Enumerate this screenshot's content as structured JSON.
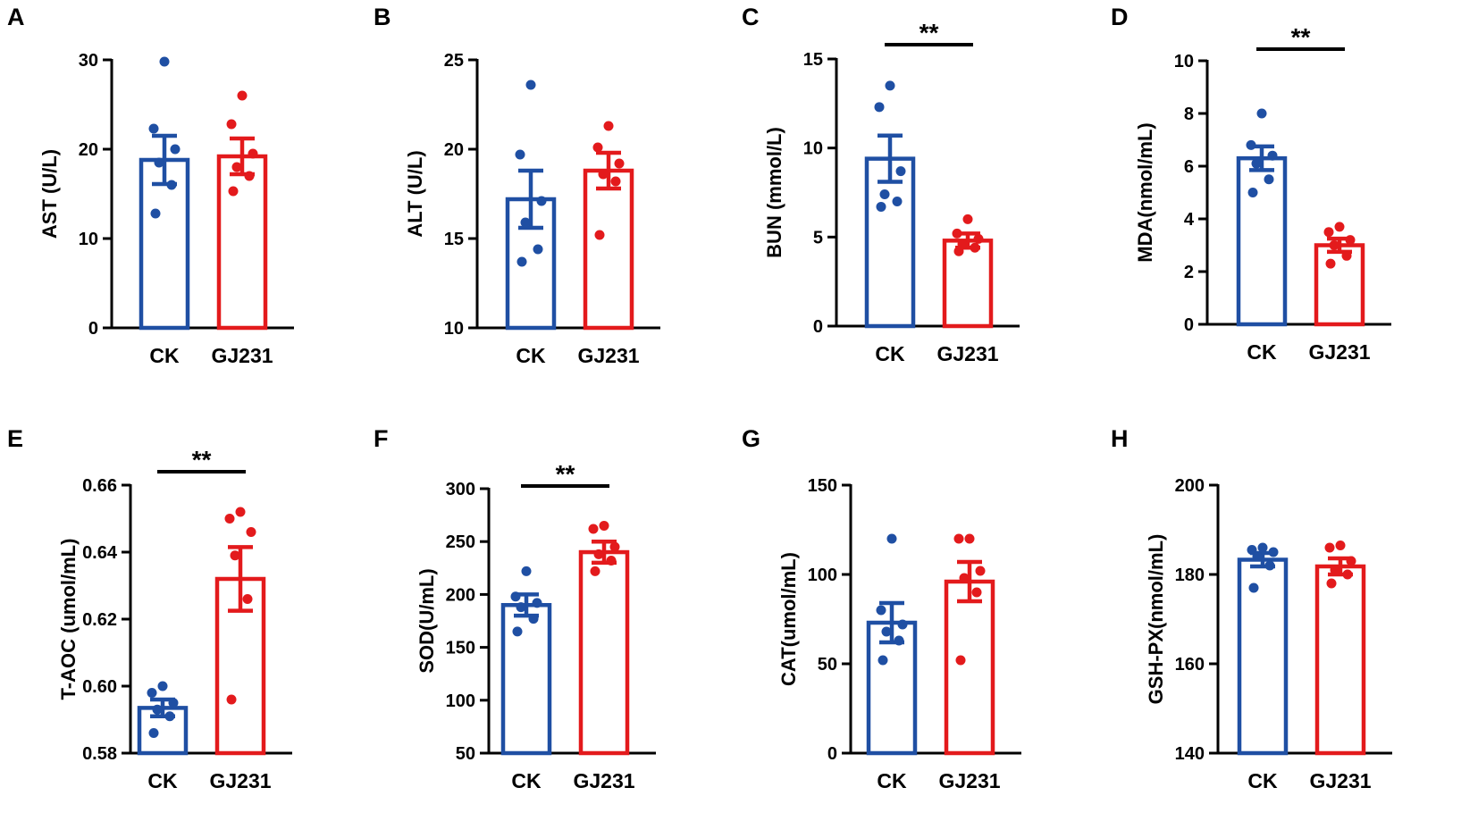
{
  "colors": {
    "ck": "#1f4fa3",
    "gj231": "#e31a1c",
    "axis": "#000000"
  },
  "chart_data": [
    {
      "panel": "A",
      "type": "bar",
      "categories": [
        "CK",
        "GJ231"
      ],
      "ylabel": "AST (U/L)",
      "ylim": [
        0,
        30
      ],
      "yticks": [
        0,
        10,
        20,
        30
      ],
      "tick_labels": [
        "0",
        "10",
        "20",
        "30"
      ],
      "significance": "",
      "series": [
        {
          "name": "CK",
          "mean": 18.8,
          "sem": 2.7,
          "points": [
            29.8,
            22.3,
            20.0,
            18.5,
            16.0,
            12.8
          ]
        },
        {
          "name": "GJ231",
          "mean": 19.2,
          "sem": 2.0,
          "points": [
            26.0,
            22.8,
            19.5,
            18.0,
            17.0,
            15.3
          ]
        }
      ]
    },
    {
      "panel": "B",
      "type": "bar",
      "categories": [
        "CK",
        "GJ231"
      ],
      "ylabel": "ALT (U/L)",
      "ylim": [
        10,
        25
      ],
      "yticks": [
        10,
        15,
        20,
        25
      ],
      "tick_labels": [
        "10",
        "15",
        "20",
        "25"
      ],
      "significance": "",
      "series": [
        {
          "name": "CK",
          "mean": 17.2,
          "sem": 1.6,
          "points": [
            23.6,
            19.7,
            17.1,
            15.9,
            14.4,
            13.7
          ]
        },
        {
          "name": "GJ231",
          "mean": 18.8,
          "sem": 1.0,
          "points": [
            21.3,
            20.1,
            19.2,
            18.6,
            18.2,
            15.2
          ]
        }
      ]
    },
    {
      "panel": "C",
      "type": "bar",
      "categories": [
        "CK",
        "GJ231"
      ],
      "ylabel": "BUN (mmol/L)",
      "ylim": [
        0,
        15
      ],
      "yticks": [
        0,
        5,
        10,
        15
      ],
      "tick_labels": [
        "0",
        "5",
        "10",
        "15"
      ],
      "significance": "**",
      "series": [
        {
          "name": "CK",
          "mean": 9.4,
          "sem": 1.3,
          "points": [
            13.5,
            12.3,
            8.7,
            7.4,
            7.0,
            6.7
          ]
        },
        {
          "name": "GJ231",
          "mean": 4.8,
          "sem": 0.4,
          "points": [
            6.0,
            5.2,
            4.9,
            4.6,
            4.4,
            4.2
          ]
        }
      ]
    },
    {
      "panel": "D",
      "type": "bar",
      "categories": [
        "CK",
        "GJ231"
      ],
      "ylabel": "MDA(nmol/mL)",
      "ylim": [
        0,
        10
      ],
      "yticks": [
        0,
        2,
        4,
        6,
        8,
        10
      ],
      "tick_labels": [
        "0",
        "2",
        "4",
        "6",
        "8",
        "10"
      ],
      "significance": "**",
      "series": [
        {
          "name": "CK",
          "mean": 6.3,
          "sem": 0.45,
          "points": [
            8.0,
            6.8,
            6.4,
            6.1,
            5.5,
            5.0
          ]
        },
        {
          "name": "GJ231",
          "mean": 3.0,
          "sem": 0.25,
          "points": [
            3.7,
            3.5,
            3.2,
            3.0,
            2.6,
            2.3
          ]
        }
      ]
    },
    {
      "panel": "E",
      "type": "bar",
      "categories": [
        "CK",
        "GJ231"
      ],
      "ylabel": "T-AOC (umol/mL)",
      "ylim": [
        0.58,
        0.66
      ],
      "yticks": [
        0.58,
        0.6,
        0.62,
        0.64,
        0.66
      ],
      "tick_labels": [
        "0.58",
        "0.60",
        "0.62",
        "0.64",
        "0.66"
      ],
      "significance": "**",
      "series": [
        {
          "name": "CK",
          "mean": 0.5935,
          "sem": 0.0025,
          "points": [
            0.6,
            0.598,
            0.595,
            0.593,
            0.591,
            0.586
          ]
        },
        {
          "name": "GJ231",
          "mean": 0.632,
          "sem": 0.0095,
          "points": [
            0.652,
            0.65,
            0.646,
            0.639,
            0.626,
            0.596
          ]
        }
      ]
    },
    {
      "panel": "F",
      "type": "bar",
      "categories": [
        "CK",
        "GJ231"
      ],
      "ylabel": "SOD(U/mL)",
      "ylim": [
        50,
        300
      ],
      "yticks": [
        50,
        100,
        150,
        200,
        250,
        300
      ],
      "tick_labels": [
        "50",
        "100",
        "150",
        "200",
        "250",
        "300"
      ],
      "significance": "**",
      "series": [
        {
          "name": "CK",
          "mean": 190,
          "sem": 10,
          "points": [
            222,
            198,
            192,
            188,
            177,
            165
          ]
        },
        {
          "name": "GJ231",
          "mean": 240,
          "sem": 10,
          "points": [
            265,
            262,
            245,
            238,
            232,
            222
          ]
        }
      ]
    },
    {
      "panel": "G",
      "type": "bar",
      "categories": [
        "CK",
        "GJ231"
      ],
      "ylabel": "CAT(umol/mL)",
      "ylim": [
        0,
        150
      ],
      "yticks": [
        0,
        50,
        100,
        150
      ],
      "tick_labels": [
        "0",
        "50",
        "100",
        "150"
      ],
      "significance": "",
      "series": [
        {
          "name": "CK",
          "mean": 73,
          "sem": 11,
          "points": [
            120,
            80,
            72,
            68,
            63,
            52
          ]
        },
        {
          "name": "GJ231",
          "mean": 96,
          "sem": 11,
          "points": [
            120,
            120,
            102,
            98,
            90,
            52
          ]
        }
      ]
    },
    {
      "panel": "H",
      "type": "bar",
      "categories": [
        "CK",
        "GJ231"
      ],
      "ylabel": "GSH-PX(nmol/mL)",
      "ylim": [
        140,
        200
      ],
      "yticks": [
        140,
        160,
        180,
        200
      ],
      "tick_labels": [
        "140",
        "160",
        "180",
        "200"
      ],
      "significance": "",
      "series": [
        {
          "name": "CK",
          "mean": 183.3,
          "sem": 1.5,
          "points": [
            186,
            185.5,
            185,
            184,
            182,
            177
          ]
        },
        {
          "name": "GJ231",
          "mean": 181.8,
          "sem": 1.8,
          "points": [
            186.5,
            186,
            183,
            181,
            180,
            178
          ]
        }
      ]
    }
  ]
}
